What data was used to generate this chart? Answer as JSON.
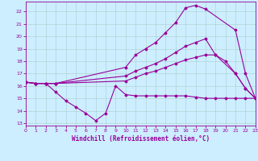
{
  "bg_color": "#cceeff",
  "line_color": "#990099",
  "grid_color": "#aacccc",
  "xlabel": "Windchill (Refroidissement éolien,°C)",
  "xlim": [
    0,
    23
  ],
  "ylim": [
    12.8,
    22.8
  ],
  "yticks": [
    13,
    14,
    15,
    16,
    17,
    18,
    19,
    20,
    21,
    22
  ],
  "xticks": [
    0,
    1,
    2,
    3,
    4,
    5,
    6,
    7,
    8,
    9,
    10,
    11,
    12,
    13,
    14,
    15,
    16,
    17,
    18,
    19,
    20,
    21,
    22,
    23
  ],
  "line1_x": [
    0,
    1,
    2,
    3,
    10,
    11,
    12,
    13,
    14,
    15,
    16,
    17,
    18,
    21,
    22,
    23
  ],
  "line1_y": [
    16.3,
    16.2,
    16.2,
    16.2,
    17.5,
    18.5,
    19.0,
    19.5,
    20.3,
    21.1,
    22.3,
    22.5,
    22.2,
    20.5,
    17.0,
    15.0
  ],
  "line2_x": [
    0,
    1,
    2,
    3,
    10,
    11,
    12,
    13,
    14,
    15,
    16,
    17,
    18,
    19,
    21,
    22,
    23
  ],
  "line2_y": [
    16.3,
    16.2,
    16.2,
    16.2,
    16.8,
    17.2,
    17.5,
    17.8,
    18.2,
    18.7,
    19.2,
    19.5,
    19.8,
    18.5,
    17.0,
    15.8,
    15.0
  ],
  "line3_x": [
    0,
    1,
    2,
    3,
    10,
    11,
    12,
    13,
    14,
    15,
    16,
    17,
    18,
    19,
    20,
    21,
    22,
    23
  ],
  "line3_y": [
    16.3,
    16.2,
    16.2,
    16.2,
    16.4,
    16.7,
    17.0,
    17.2,
    17.5,
    17.8,
    18.1,
    18.3,
    18.5,
    18.5,
    18.0,
    17.0,
    15.8,
    15.0
  ],
  "line4_x": [
    0,
    1,
    2,
    3,
    4,
    5,
    6,
    7,
    8,
    9,
    10,
    11,
    12,
    13,
    14,
    15,
    16,
    17,
    18,
    19,
    20,
    21,
    22,
    23
  ],
  "line4_y": [
    16.3,
    16.2,
    16.2,
    15.5,
    14.8,
    14.3,
    13.8,
    13.2,
    13.8,
    16.0,
    15.3,
    15.2,
    15.2,
    15.2,
    15.2,
    15.2,
    15.2,
    15.1,
    15.0,
    15.0,
    15.0,
    15.0,
    15.0,
    15.0
  ]
}
